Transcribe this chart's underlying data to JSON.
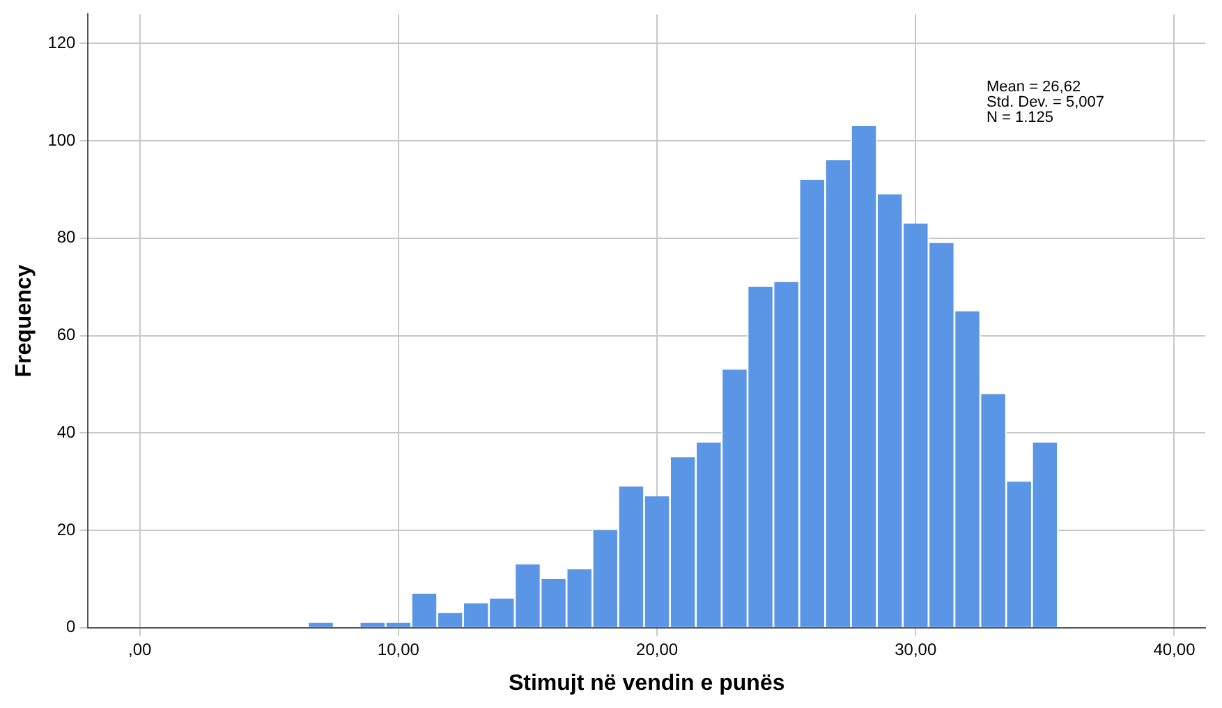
{
  "chart_data": {
    "type": "histogram",
    "xlabel": "Stimujt në vendin e punës",
    "ylabel": "Frequency",
    "bins": [
      6.5,
      7.5,
      8.5,
      9.5,
      10.5,
      11.5,
      12.5,
      13.5,
      14.5,
      15.5,
      16.5,
      17.5,
      18.5,
      19.5,
      20.5,
      21.5,
      22.5,
      23.5,
      24.5,
      25.5,
      26.5,
      27.5,
      28.5,
      29.5,
      30.5,
      31.5,
      32.5,
      33.5,
      34.5,
      35.5
    ],
    "values": [
      1,
      0,
      1,
      1,
      7,
      3,
      5,
      6,
      13,
      10,
      12,
      20,
      29,
      27,
      35,
      38,
      53,
      70,
      71,
      92,
      96,
      103,
      89,
      83,
      79,
      65,
      48,
      30,
      38
    ],
    "color": "#5b96e6",
    "xlim": [
      -2,
      41.2
    ],
    "ylim": [
      0,
      126
    ],
    "xticks": [
      {
        "value": 0,
        "label": ",00"
      },
      {
        "value": 10,
        "label": "10,00"
      },
      {
        "value": 20,
        "label": "20,00"
      },
      {
        "value": 30,
        "label": "30,00"
      },
      {
        "value": 40,
        "label": "40,00"
      }
    ],
    "yticks": [
      0,
      20,
      40,
      60,
      80,
      100,
      120
    ],
    "grid": true,
    "legend": false,
    "annotations": [
      "Mean = 26,62",
      "Std. Dev. = 5,007",
      "N = 1.125"
    ]
  }
}
